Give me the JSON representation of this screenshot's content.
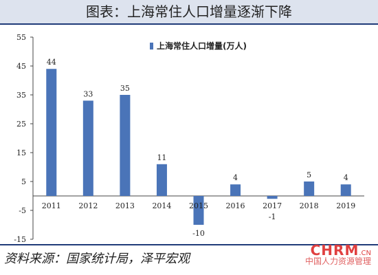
{
  "header": {
    "title": "图表：上海常住人口增量逐渐下降"
  },
  "chart_data": {
    "type": "bar",
    "title": "",
    "categories": [
      "2011",
      "2012",
      "2013",
      "2014",
      "2015",
      "2016",
      "2017",
      "2018",
      "2019"
    ],
    "series": [
      {
        "name": "上海常住人口增量(万人)",
        "values": [
          44,
          33,
          35,
          11,
          -10,
          4,
          -1,
          5,
          4
        ]
      }
    ],
    "data_labels": [
      "44",
      "33",
      "35",
      "11",
      "-10",
      "4",
      "-1",
      "5",
      "4"
    ],
    "yticks": [
      55,
      45,
      35,
      25,
      15,
      5,
      -5,
      -15
    ],
    "ytick_labels": [
      "55",
      "45",
      "35",
      "25",
      "15",
      "5",
      "-5",
      "-15"
    ],
    "ylim": [
      -15,
      55
    ],
    "xlabel": "",
    "ylabel": "",
    "legend_position": "top-right",
    "grid": false,
    "bar_color": "#4a74b8"
  },
  "footer": {
    "source": "资料来源：国家统计局，泽平宏观",
    "watermark_brand": "CHRM",
    "watermark_cn": ".CN",
    "watermark_sub": "中国人力资源管理"
  }
}
